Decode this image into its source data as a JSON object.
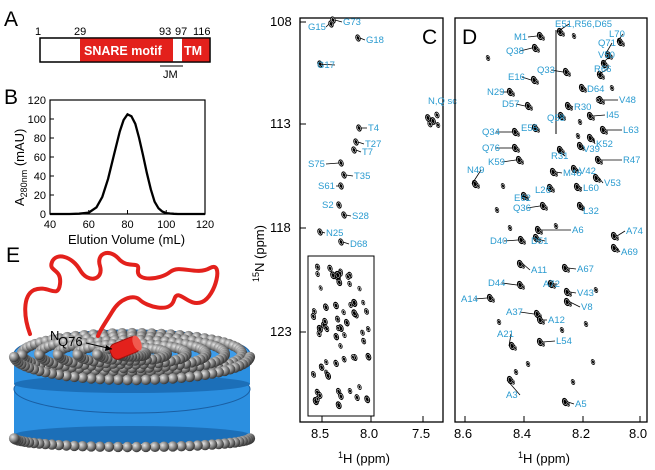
{
  "panels": {
    "a": "A",
    "b": "B",
    "c": "C",
    "d": "D",
    "e": "E"
  },
  "panel_a": {
    "residue_numbers": [
      "1",
      "29",
      "93",
      "97",
      "116"
    ],
    "domains": {
      "snare": "SNARE motif",
      "tm": "TM",
      "jm": "JM"
    },
    "colors": {
      "snare": "#e3211c",
      "tm": "#e3211c",
      "outline": "#000000"
    }
  },
  "panel_b": {
    "ylabel_main": "A",
    "ylabel_sub": "280nm",
    "ylabel_unit": " (mAU)",
    "xlabel": "Elution Volume (mL)"
  },
  "panel_c": {
    "ylabel_sup": "15",
    "ylabel_main": "N (ppm)",
    "xlabel_sup": "1",
    "xlabel_main": "H (ppm)",
    "y_ticks": [
      "108",
      "113",
      "118",
      "123"
    ],
    "x_ticks": [
      "8.5",
      "8.0",
      "7.5"
    ],
    "peak_labels": [
      "G15",
      "G73",
      "G18",
      "G17",
      "N,Q sc",
      "T4",
      "T27",
      "T7",
      "S75",
      "T35",
      "S61",
      "S2",
      "S28",
      "N25",
      "D68"
    ]
  },
  "panel_d": {
    "xlabel_sup": "1",
    "xlabel_main": "H (ppm)",
    "x_ticks": [
      "8.6",
      "8.4",
      "8.2",
      "8.0"
    ],
    "peak_labels": [
      "M1",
      "E51,R56,D65",
      "L70",
      "Q38",
      "Q71",
      "V50",
      "Q33",
      "R66",
      "E16",
      "N29",
      "D64",
      "V48",
      "D57",
      "R30",
      "Q58",
      "I45",
      "E55",
      "L63",
      "Q34",
      "K52",
      "Q76",
      "V39",
      "R31",
      "R47",
      "K59",
      "M46",
      "V42",
      "V53",
      "N49",
      "L26",
      "L60",
      "E62",
      "Q36",
      "L32",
      "A6",
      "A74",
      "D40",
      "D51",
      "A69",
      "A11",
      "A67",
      "D44",
      "A72",
      "V43",
      "A14",
      "V8",
      "A37",
      "A12",
      "A21",
      "L54",
      "A3",
      "A5"
    ]
  },
  "panel_e": {
    "labels": {
      "n_term": "N",
      "q76": "Q76"
    },
    "colors": {
      "protein": "#e3211c",
      "membrane": "#2b8fe0",
      "lipid_head": "#808080"
    }
  },
  "chart_data": [
    {
      "type": "line",
      "panel": "B",
      "title": "",
      "xlabel": "Elution Volume (mL)",
      "ylabel": "A280nm (mAU)",
      "xlim": [
        40,
        120
      ],
      "ylim": [
        0,
        120
      ],
      "x_ticks": [
        40,
        60,
        80,
        100,
        120
      ],
      "y_ticks": [
        0,
        20,
        40,
        60,
        80,
        100,
        120
      ],
      "series": [
        {
          "x": [
            40,
            50,
            55,
            60,
            64,
            67,
            70,
            73,
            76,
            78,
            80,
            82,
            84,
            86,
            88,
            90,
            92,
            94,
            96,
            98,
            100,
            102,
            104,
            106,
            110,
            120
          ],
          "values": [
            0,
            0,
            0.3,
            1.5,
            7,
            18,
            37,
            62,
            87,
            99,
            105,
            103,
            95,
            80,
            62,
            43,
            26,
            13,
            6,
            2.5,
            1,
            0.5,
            0.2,
            0,
            0,
            0
          ]
        }
      ]
    }
  ]
}
